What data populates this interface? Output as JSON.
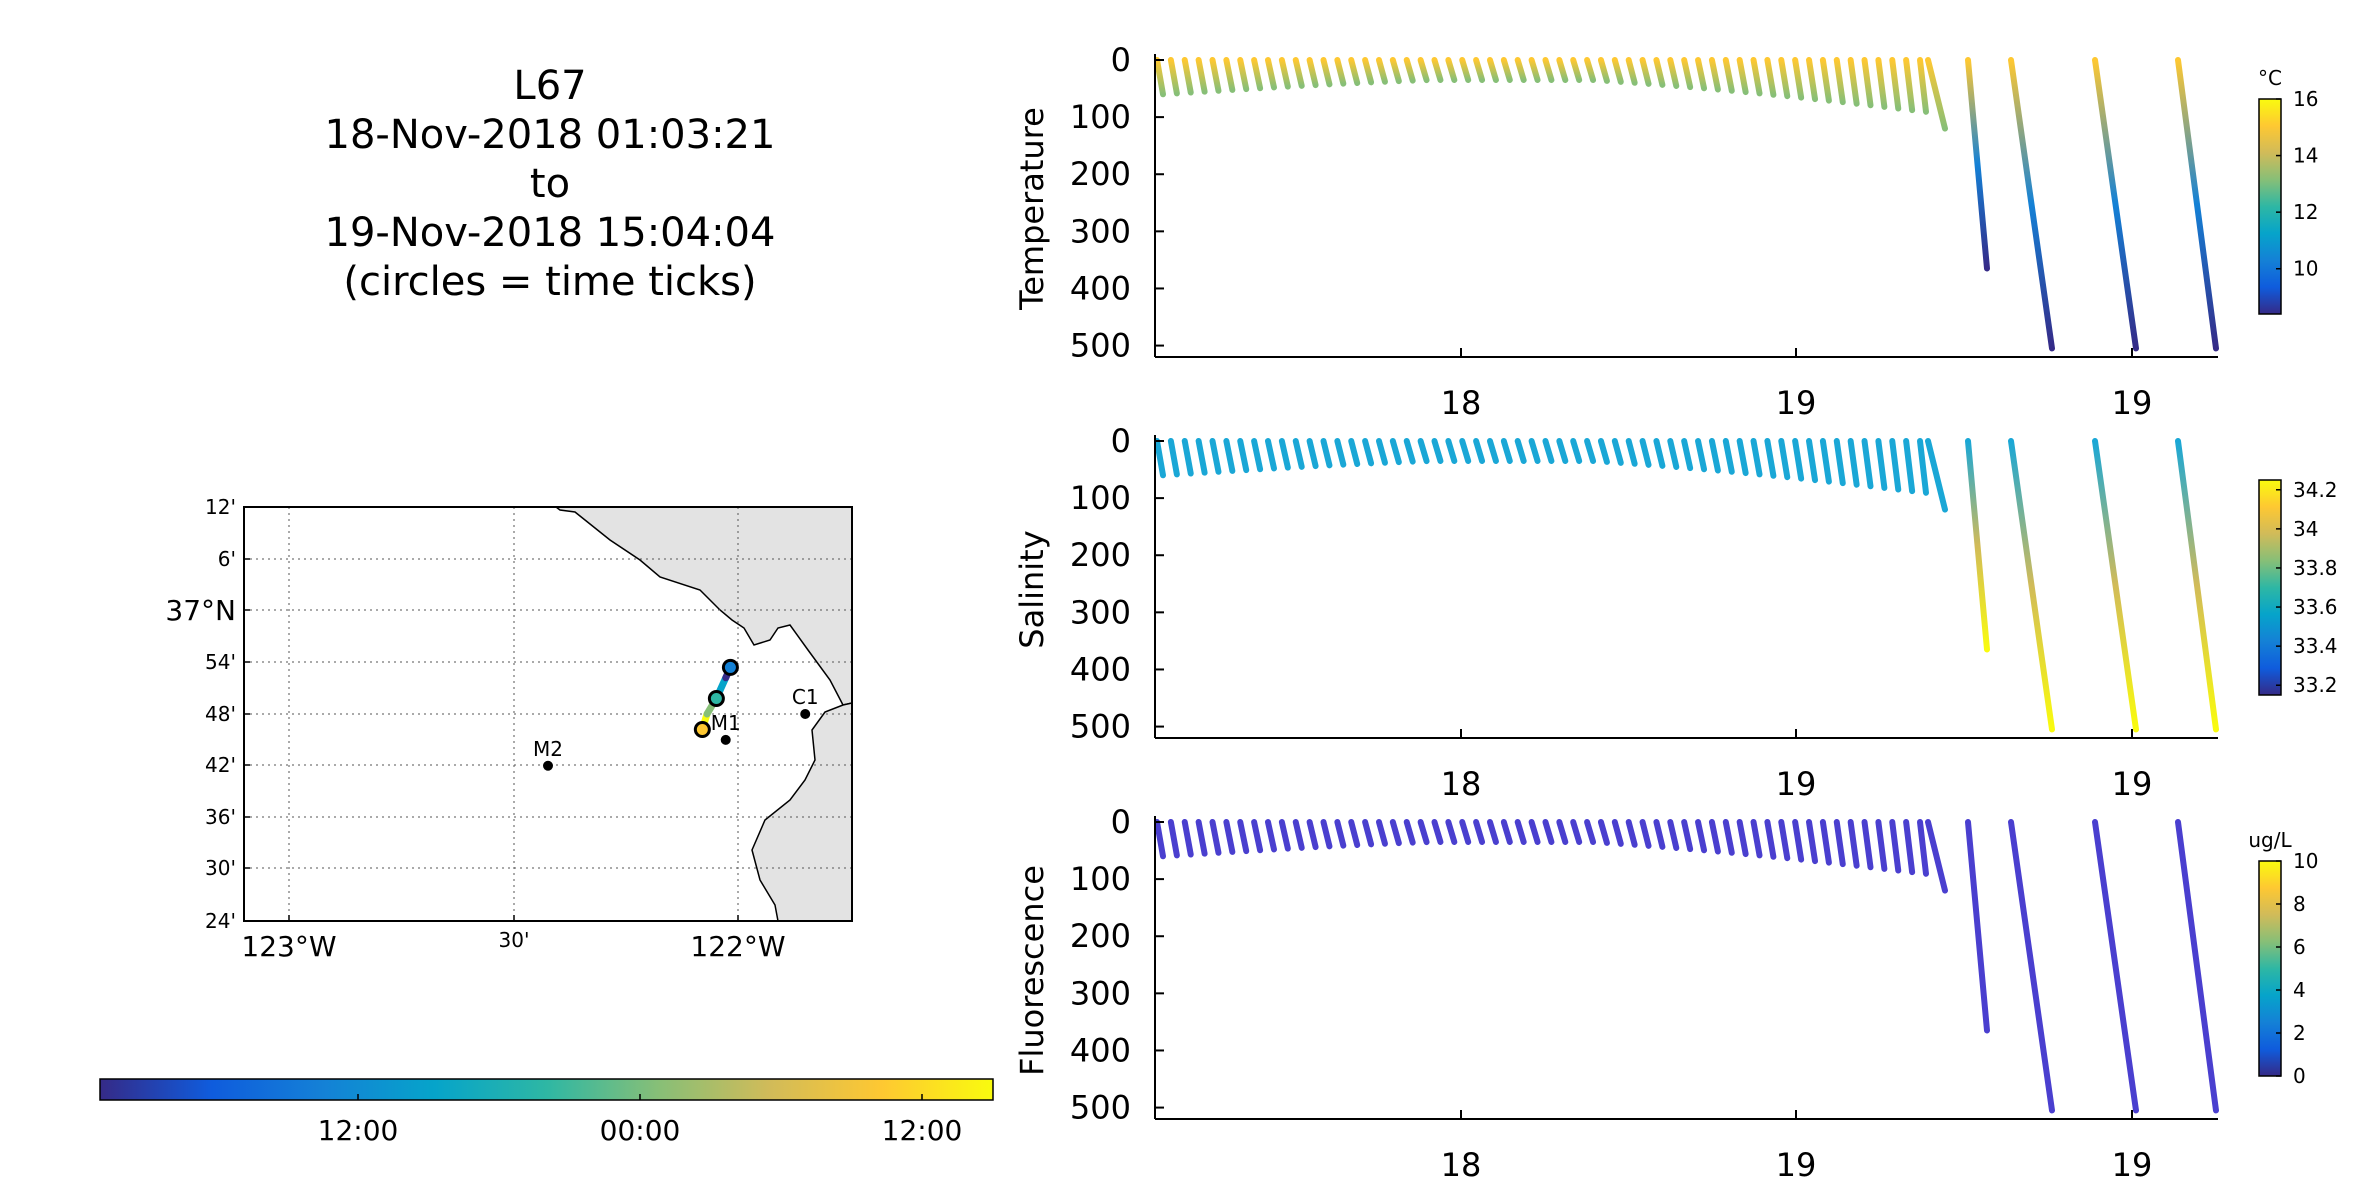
{
  "title": {
    "line1": "L67",
    "line2": "18-Nov-2018 01:03:21",
    "line3": "to",
    "line4": "19-Nov-2018 15:04:04",
    "line5": "(circles = time ticks)"
  },
  "colors": {
    "parula": [
      "#352a87",
      "#0f5cdd",
      "#1481d6",
      "#06a4ca",
      "#2eb7a4",
      "#87bf77",
      "#d1bb59",
      "#fec832",
      "#f9fb0e"
    ],
    "land": "#e3e3e3",
    "axis": "#000000"
  },
  "map": {
    "lat_ticks": [
      "12'",
      "6'",
      "37°N",
      "54'",
      "48'",
      "42'",
      "36'",
      "30'",
      "24'"
    ],
    "lon_ticks": [
      "123°W",
      "30'",
      "122°W"
    ],
    "lat_range": [
      36.4,
      37.2
    ],
    "lon_range": [
      -123.05,
      -121.75
    ],
    "stations": [
      {
        "name": "C1",
        "lon": -121.85,
        "lat": 36.8
      },
      {
        "name": "M1",
        "lon": -122.02,
        "lat": 36.75
      },
      {
        "name": "M2",
        "lon": -122.4,
        "lat": 36.7
      }
    ],
    "track": [
      {
        "lon": -122.07,
        "lat": 36.77
      },
      {
        "lon": -122.06,
        "lat": 36.8
      },
      {
        "lon": -122.04,
        "lat": 36.83
      },
      {
        "lon": -122.02,
        "lat": 36.87
      },
      {
        "lon": -122.01,
        "lat": 36.89
      }
    ]
  },
  "time_colorbar": {
    "tick_labels": [
      "12:00",
      "00:00",
      "12:00"
    ]
  },
  "chart_data": [
    {
      "type": "scatter",
      "ylabel": "Temperature",
      "x_tick_labels": [
        "18",
        "19",
        "19"
      ],
      "y_ticks": [
        0,
        100,
        200,
        300,
        400,
        500
      ],
      "ylim": [
        0,
        520
      ],
      "colorbar": {
        "unit": "°C",
        "ticks": [
          10,
          12,
          14,
          16
        ],
        "range": [
          8.4,
          16.0
        ]
      },
      "profile_colors": [
        "#fec832",
        "#87bf77"
      ],
      "deep_colors": [
        "#fec832",
        "#1481d6",
        "#352a87"
      ]
    },
    {
      "type": "scatter",
      "ylabel": "Salinity",
      "x_tick_labels": [
        "18",
        "19",
        "19"
      ],
      "y_ticks": [
        0,
        100,
        200,
        300,
        400,
        500
      ],
      "ylim": [
        0,
        520
      ],
      "colorbar": {
        "unit": "",
        "ticks": [
          33.2,
          33.4,
          33.6,
          33.8,
          34,
          34.2
        ],
        "range": [
          33.15,
          34.25
        ]
      },
      "profile_colors": [
        "#1aa7d6",
        "#1aa7d6"
      ],
      "deep_colors": [
        "#1aa7d6",
        "#d1bb59",
        "#f9fb0e"
      ]
    },
    {
      "type": "scatter",
      "ylabel": "Fluorescence",
      "x_tick_labels": [
        "18",
        "19",
        "19"
      ],
      "y_ticks": [
        0,
        100,
        200,
        300,
        400,
        500
      ],
      "ylim": [
        0,
        520
      ],
      "colorbar": {
        "unit": "ug/L",
        "ticks": [
          0,
          2,
          4,
          6,
          8,
          10
        ],
        "range": [
          0,
          10
        ]
      },
      "profile_colors": [
        "#4a3fcf",
        "#4a3fcf"
      ],
      "deep_colors": [
        "#4a3fcf",
        "#4a3fcf",
        "#4a3fcf"
      ]
    }
  ]
}
